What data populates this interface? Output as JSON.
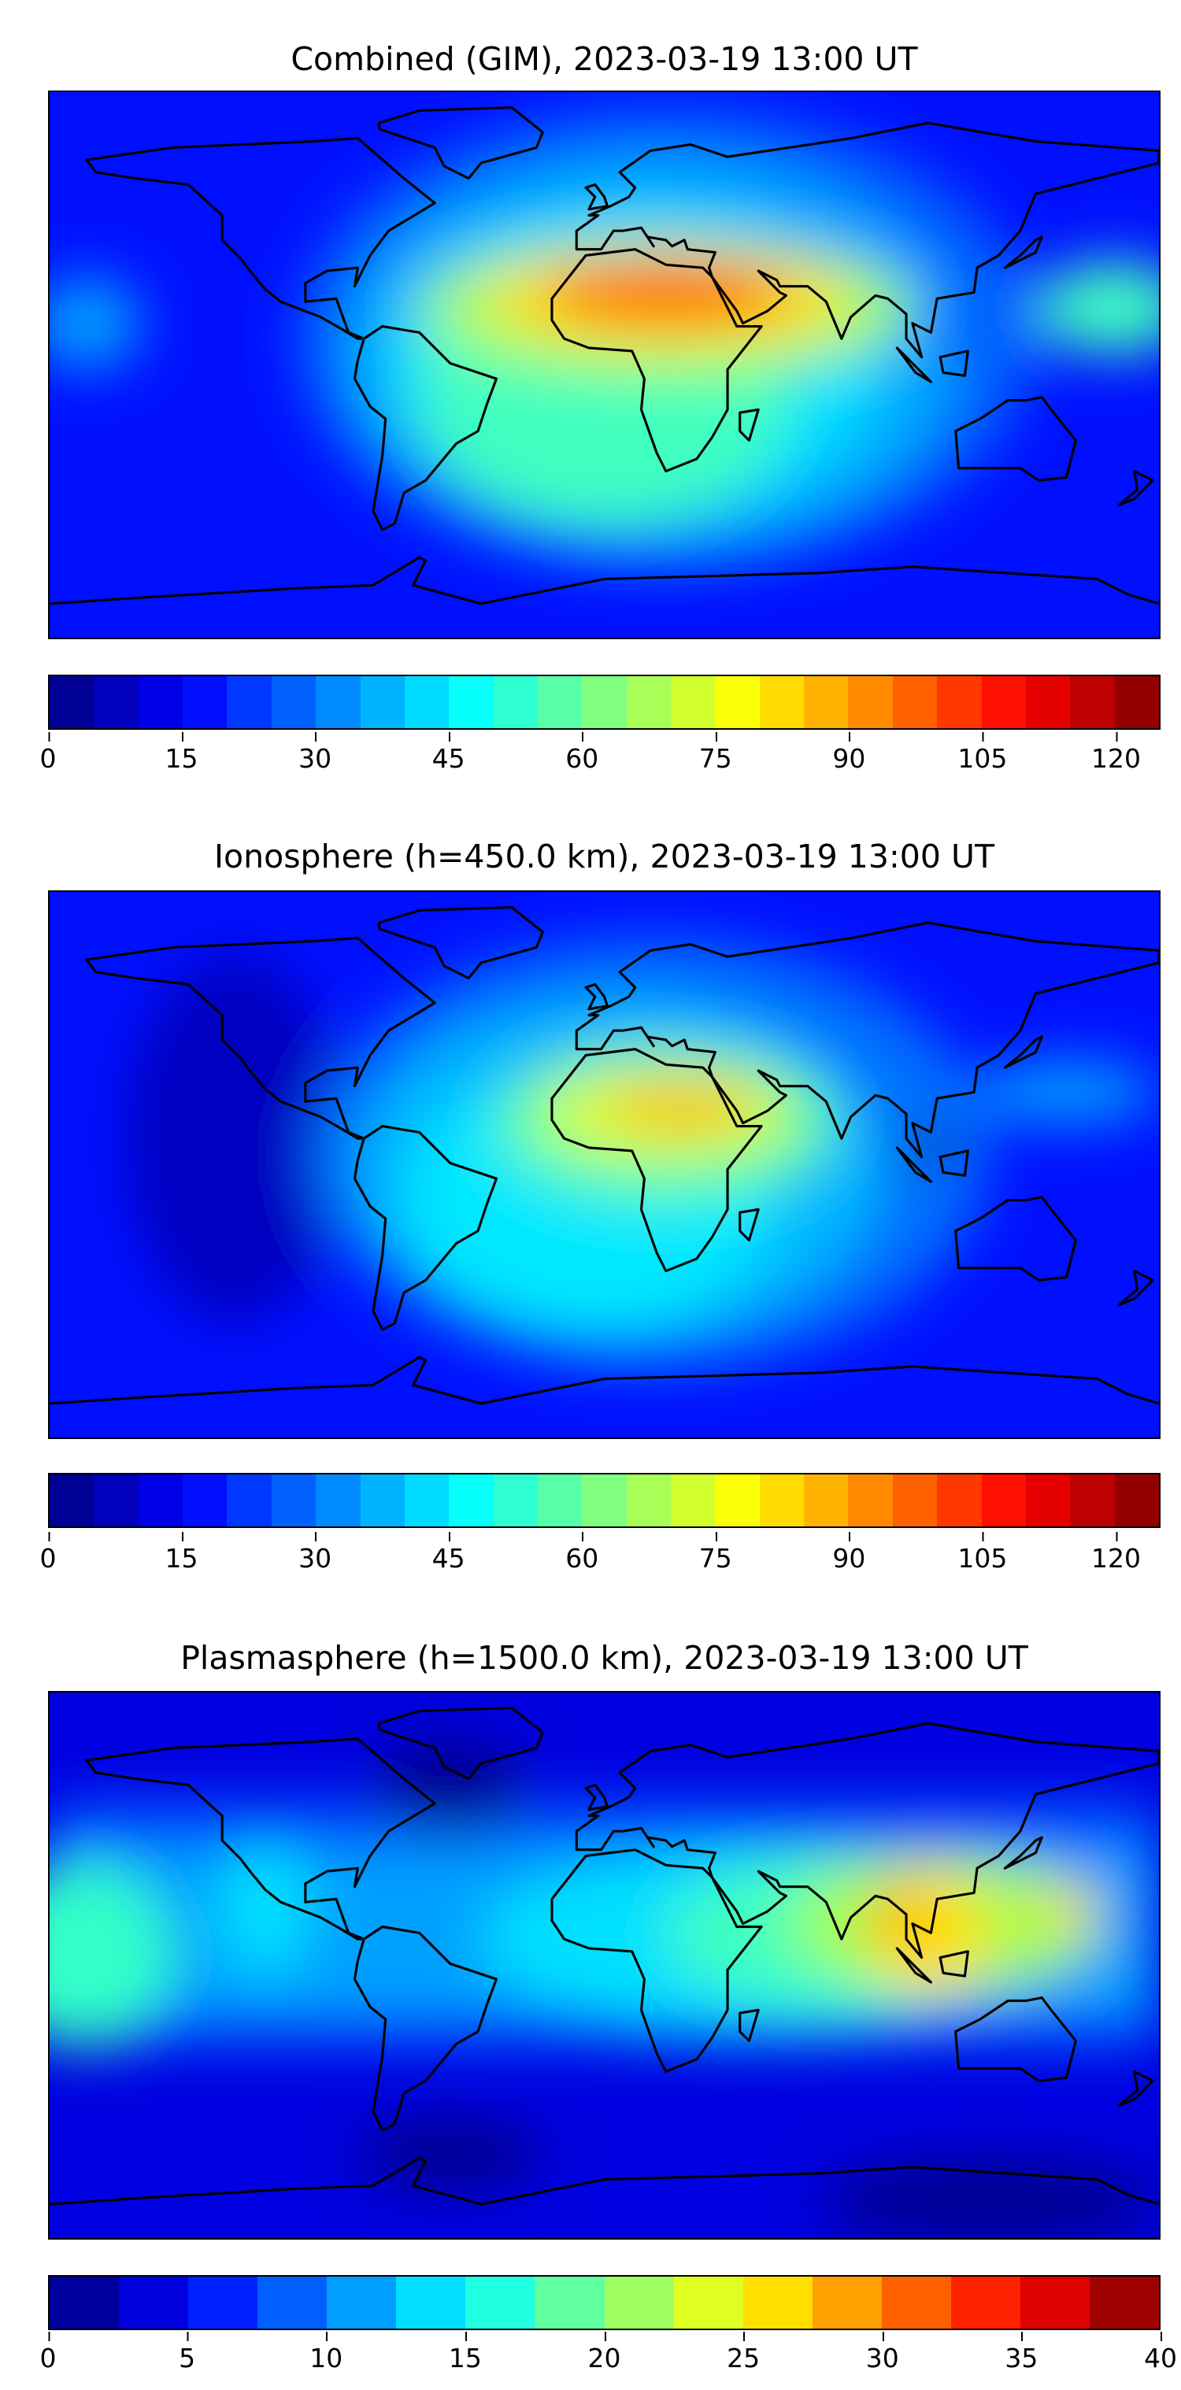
{
  "chart_data": [
    {
      "type": "heatmap",
      "title": "Combined (GIM), 2023-03-19 13:00 UT",
      "colorbar": {
        "min": 0,
        "max": 125,
        "step": 5,
        "ticks": [
          "0",
          "15",
          "30",
          "45",
          "60",
          "75",
          "90",
          "105",
          "120"
        ],
        "tick_values": [
          0,
          15,
          30,
          45,
          60,
          75,
          90,
          105,
          120
        ],
        "colormap": "jet"
      },
      "features": {
        "max_region": "North Africa / Arabia (~100-105)",
        "min_region": "Pacific / high latitudes (~5-15)"
      }
    },
    {
      "type": "heatmap",
      "title": "Ionosphere  (h=450.0 km), 2023-03-19 13:00 UT",
      "colorbar": {
        "min": 0,
        "max": 125,
        "step": 5,
        "ticks": [
          "0",
          "15",
          "30",
          "45",
          "60",
          "75",
          "90",
          "105",
          "120"
        ],
        "tick_values": [
          0,
          15,
          30,
          45,
          60,
          75,
          90,
          105,
          120
        ],
        "colormap": "jet"
      },
      "features": {
        "max_region": "North Africa (~85-90)",
        "min_region": "Pacific / high latitudes (~5-10)"
      }
    },
    {
      "type": "heatmap",
      "title": "Plasmasphere (h=1500.0 km), 2023-03-19 13:00 UT",
      "colorbar": {
        "min": 0,
        "max": 40,
        "step": 2.5,
        "ticks": [
          "0",
          "5",
          "10",
          "15",
          "20",
          "25",
          "30",
          "35",
          "40"
        ],
        "tick_values": [
          0,
          5,
          10,
          15,
          20,
          25,
          30,
          35,
          40
        ],
        "colormap": "jet"
      },
      "features": {
        "max_region": "Southeast Asia (~30)",
        "min_region": "North Atlantic / South Pacific (~0-2.5)"
      }
    }
  ]
}
